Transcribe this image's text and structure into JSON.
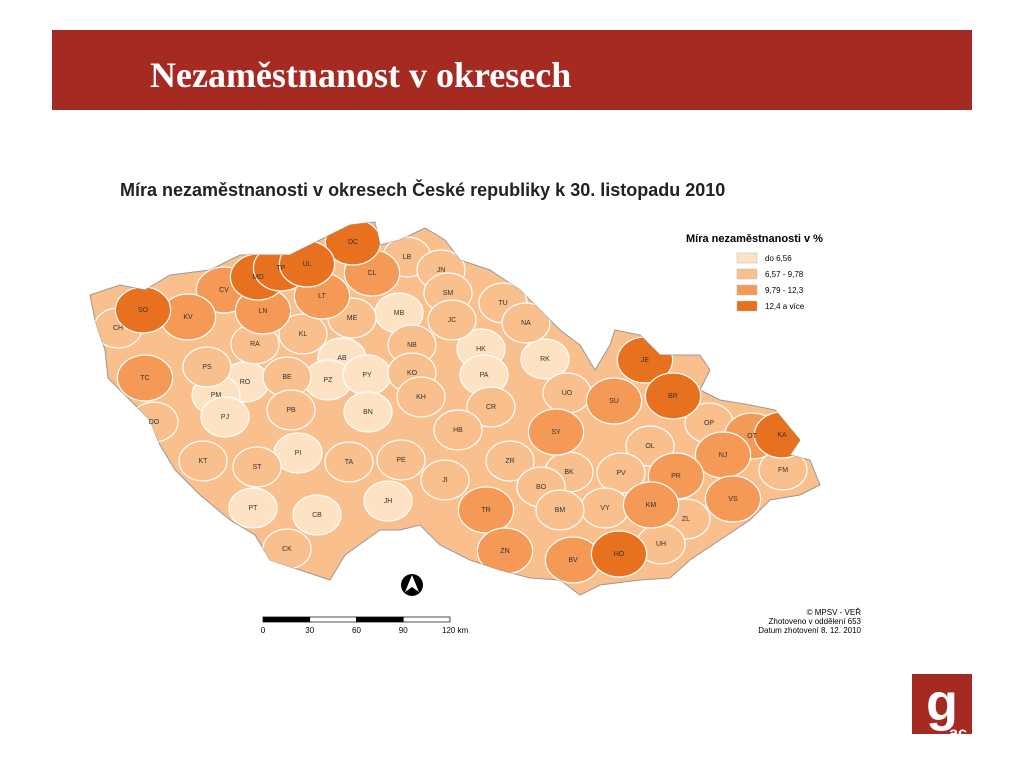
{
  "header": {
    "title": "Nezaměstnanost v okresech"
  },
  "map": {
    "title": "Míra nezaměstnanosti v okresech České republiky k 30. listopadu 2010",
    "legend": {
      "title": "Míra nezaměstnanosti v %",
      "items": [
        {
          "label": "do 6,56",
          "color": "#fde3c4"
        },
        {
          "label": "6,57 - 9,78",
          "color": "#f9bf8c"
        },
        {
          "label": "9,79 - 12,3",
          "color": "#f49a56"
        },
        {
          "label": "12,4 a více",
          "color": "#e8711f"
        }
      ]
    },
    "districts": [
      {
        "label": "DC",
        "class": 3
      },
      {
        "label": "LB",
        "class": 1
      },
      {
        "label": "JN",
        "class": 1
      },
      {
        "label": "MO",
        "class": 3
      },
      {
        "label": "TP",
        "class": 3
      },
      {
        "label": "UL",
        "class": 3
      },
      {
        "label": "CL",
        "class": 2
      },
      {
        "label": "CV",
        "class": 2
      },
      {
        "label": "SO",
        "class": 3
      },
      {
        "label": "KV",
        "class": 2
      },
      {
        "label": "LN",
        "class": 2
      },
      {
        "label": "LT",
        "class": 2
      },
      {
        "label": "SM",
        "class": 1
      },
      {
        "label": "TU",
        "class": 1
      },
      {
        "label": "MB",
        "class": 0
      },
      {
        "label": "ME",
        "class": 1
      },
      {
        "label": "JC",
        "class": 1
      },
      {
        "label": "NA",
        "class": 1
      },
      {
        "label": "CH",
        "class": 1
      },
      {
        "label": "KL",
        "class": 1
      },
      {
        "label": "RA",
        "class": 1
      },
      {
        "label": "NB",
        "class": 1
      },
      {
        "label": "HK",
        "class": 0
      },
      {
        "label": "AB",
        "class": 0
      },
      {
        "label": "RK",
        "class": 0
      },
      {
        "label": "JE",
        "class": 3
      },
      {
        "label": "PS",
        "class": 1
      },
      {
        "label": "KO",
        "class": 1
      },
      {
        "label": "PZ",
        "class": 0
      },
      {
        "label": "PY",
        "class": 0
      },
      {
        "label": "PA",
        "class": 0
      },
      {
        "label": "TC",
        "class": 2
      },
      {
        "label": "BE",
        "class": 1
      },
      {
        "label": "RO",
        "class": 0
      },
      {
        "label": "UO",
        "class": 1
      },
      {
        "label": "BR",
        "class": 3
      },
      {
        "label": "PM",
        "class": 0
      },
      {
        "label": "KH",
        "class": 1
      },
      {
        "label": "SU",
        "class": 2
      },
      {
        "label": "PB",
        "class": 1
      },
      {
        "label": "CR",
        "class": 1
      },
      {
        "label": "BN",
        "class": 0
      },
      {
        "label": "PJ",
        "class": 0
      },
      {
        "label": "DO",
        "class": 1
      },
      {
        "label": "OP",
        "class": 1
      },
      {
        "label": "SY",
        "class": 2
      },
      {
        "label": "HB",
        "class": 1
      },
      {
        "label": "OT",
        "class": 2
      },
      {
        "label": "KA",
        "class": 3
      },
      {
        "label": "OL",
        "class": 1
      },
      {
        "label": "PI",
        "class": 0
      },
      {
        "label": "NJ",
        "class": 2
      },
      {
        "label": "TA",
        "class": 1
      },
      {
        "label": "PE",
        "class": 1
      },
      {
        "label": "KT",
        "class": 1
      },
      {
        "label": "ZR",
        "class": 1
      },
      {
        "label": "ST",
        "class": 1
      },
      {
        "label": "FM",
        "class": 1
      },
      {
        "label": "BK",
        "class": 1
      },
      {
        "label": "PV",
        "class": 1
      },
      {
        "label": "PR",
        "class": 2
      },
      {
        "label": "JI",
        "class": 1
      },
      {
        "label": "BO",
        "class": 1
      },
      {
        "label": "VS",
        "class": 2
      },
      {
        "label": "KM",
        "class": 2
      },
      {
        "label": "VY",
        "class": 1
      },
      {
        "label": "TR",
        "class": 2
      },
      {
        "label": "BM",
        "class": 1
      },
      {
        "label": "PT",
        "class": 0
      },
      {
        "label": "JH",
        "class": 0
      },
      {
        "label": "CB",
        "class": 0
      },
      {
        "label": "ZL",
        "class": 1
      },
      {
        "label": "UH",
        "class": 1
      },
      {
        "label": "CK",
        "class": 1
      },
      {
        "label": "ZN",
        "class": 2
      },
      {
        "label": "HO",
        "class": 3
      },
      {
        "label": "BV",
        "class": 2
      }
    ],
    "scale": {
      "labels": [
        "0",
        "30",
        "60",
        "90",
        "120 km"
      ]
    },
    "credits": [
      "© MPSV - VEŘ",
      "Zhotoveno v oddělení 653",
      "Datum zhotovení 8. 12. 2010"
    ]
  },
  "logo": {
    "main": "g",
    "sub": "ac"
  }
}
